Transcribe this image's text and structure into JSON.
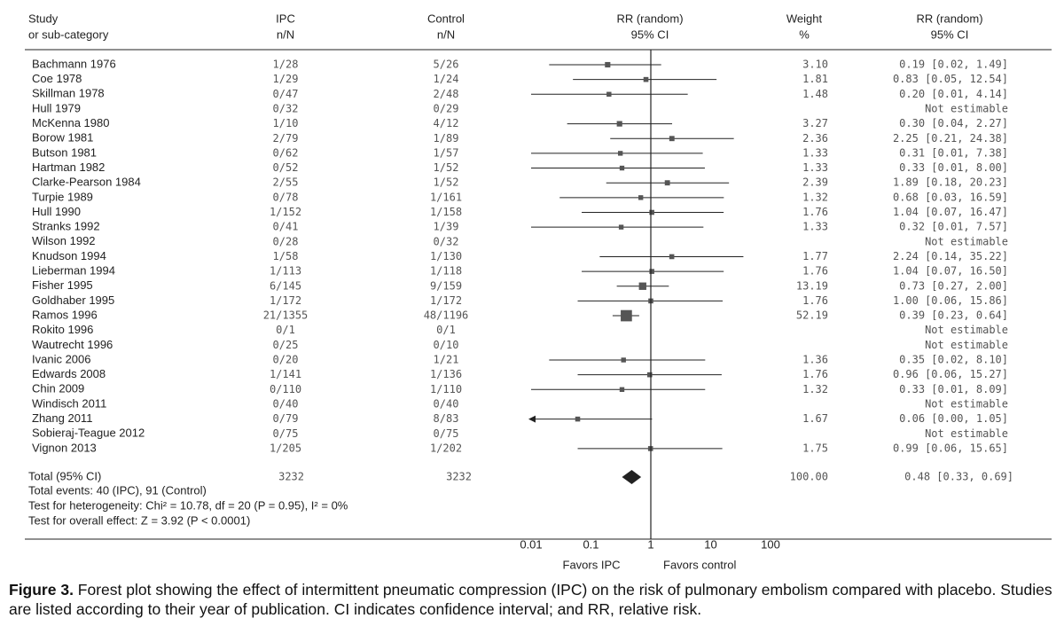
{
  "headers": {
    "study": [
      "Study",
      "or sub-category"
    ],
    "ipc": [
      "IPC",
      "n/N"
    ],
    "control": [
      "Control",
      "n/N"
    ],
    "rr": [
      "RR (random)",
      "95% CI"
    ],
    "weight": [
      "Weight",
      "%"
    ],
    "rr_ci": [
      "RR (random)",
      "95% CI"
    ]
  },
  "chart_data": {
    "type": "forest",
    "x_scale": "log",
    "xlim": [
      0.01,
      100
    ],
    "x_ticks": [
      0.01,
      0.1,
      1,
      10,
      100
    ],
    "x_tick_labels": [
      "0.01",
      "0.1",
      "1",
      "10",
      "100"
    ],
    "null_line": 1,
    "rows": [
      {
        "study": "Bachmann 1976",
        "ipc": "1/28",
        "control": "5/26",
        "rr": 0.19,
        "lo": 0.02,
        "hi": 1.49,
        "weight": "3.10",
        "ci_text": "0.19 [0.02, 1.49]"
      },
      {
        "study": "Coe 1978",
        "ipc": "1/29",
        "control": "1/24",
        "rr": 0.83,
        "lo": 0.05,
        "hi": 12.54,
        "weight": "1.81",
        "ci_text": "0.83 [0.05, 12.54]"
      },
      {
        "study": "Skillman 1978",
        "ipc": "0/47",
        "control": "2/48",
        "rr": 0.2,
        "lo": 0.01,
        "hi": 4.14,
        "weight": "1.48",
        "ci_text": "0.20 [0.01, 4.14]"
      },
      {
        "study": "Hull 1979",
        "ipc": "0/32",
        "control": "0/29",
        "rr": null,
        "lo": null,
        "hi": null,
        "weight": "",
        "ci_text": "Not estimable"
      },
      {
        "study": "McKenna 1980",
        "ipc": "1/10",
        "control": "4/12",
        "rr": 0.3,
        "lo": 0.04,
        "hi": 2.27,
        "weight": "3.27",
        "ci_text": "0.30 [0.04, 2.27]"
      },
      {
        "study": "Borow 1981",
        "ipc": "2/79",
        "control": "1/89",
        "rr": 2.25,
        "lo": 0.21,
        "hi": 24.38,
        "weight": "2.36",
        "ci_text": "2.25 [0.21, 24.38]"
      },
      {
        "study": "Butson 1981",
        "ipc": "0/62",
        "control": "1/57",
        "rr": 0.31,
        "lo": 0.01,
        "hi": 7.38,
        "weight": "1.33",
        "ci_text": "0.31 [0.01, 7.38]"
      },
      {
        "study": "Hartman 1982",
        "ipc": "0/52",
        "control": "1/52",
        "rr": 0.33,
        "lo": 0.01,
        "hi": 8.0,
        "weight": "1.33",
        "ci_text": "0.33 [0.01, 8.00]"
      },
      {
        "study": "Clarke-Pearson 1984",
        "ipc": "2/55",
        "control": "1/52",
        "rr": 1.89,
        "lo": 0.18,
        "hi": 20.23,
        "weight": "2.39",
        "ci_text": "1.89 [0.18, 20.23]"
      },
      {
        "study": "Turpie 1989",
        "ipc": "0/78",
        "control": "1/161",
        "rr": 0.68,
        "lo": 0.03,
        "hi": 16.59,
        "weight": "1.32",
        "ci_text": "0.68 [0.03, 16.59]"
      },
      {
        "study": "Hull 1990",
        "ipc": "1/152",
        "control": "1/158",
        "rr": 1.04,
        "lo": 0.07,
        "hi": 16.47,
        "weight": "1.76",
        "ci_text": "1.04 [0.07, 16.47]"
      },
      {
        "study": "Stranks 1992",
        "ipc": "0/41",
        "control": "1/39",
        "rr": 0.32,
        "lo": 0.01,
        "hi": 7.57,
        "weight": "1.33",
        "ci_text": "0.32 [0.01, 7.57]"
      },
      {
        "study": "Wilson 1992",
        "ipc": "0/28",
        "control": "0/32",
        "rr": null,
        "lo": null,
        "hi": null,
        "weight": "",
        "ci_text": "Not estimable"
      },
      {
        "study": "Knudson 1994",
        "ipc": "1/58",
        "control": "1/130",
        "rr": 2.24,
        "lo": 0.14,
        "hi": 35.22,
        "weight": "1.77",
        "ci_text": "2.24 [0.14, 35.22]"
      },
      {
        "study": "Lieberman 1994",
        "ipc": "1/113",
        "control": "1/118",
        "rr": 1.04,
        "lo": 0.07,
        "hi": 16.5,
        "weight": "1.76",
        "ci_text": "1.04 [0.07, 16.50]"
      },
      {
        "study": "Fisher 1995",
        "ipc": "6/145",
        "control": "9/159",
        "rr": 0.73,
        "lo": 0.27,
        "hi": 2.0,
        "weight": "13.19",
        "ci_text": "0.73 [0.27, 2.00]"
      },
      {
        "study": "Goldhaber 1995",
        "ipc": "1/172",
        "control": "1/172",
        "rr": 1.0,
        "lo": 0.06,
        "hi": 15.86,
        "weight": "1.76",
        "ci_text": "1.00 [0.06, 15.86]"
      },
      {
        "study": "Ramos 1996",
        "ipc": "21/1355",
        "control": "48/1196",
        "rr": 0.39,
        "lo": 0.23,
        "hi": 0.64,
        "weight": "52.19",
        "ci_text": "0.39 [0.23, 0.64]"
      },
      {
        "study": "Rokito 1996",
        "ipc": "0/1",
        "control": "0/1",
        "rr": null,
        "lo": null,
        "hi": null,
        "weight": "",
        "ci_text": "Not estimable"
      },
      {
        "study": "Wautrecht 1996",
        "ipc": "0/25",
        "control": "0/10",
        "rr": null,
        "lo": null,
        "hi": null,
        "weight": "",
        "ci_text": "Not estimable"
      },
      {
        "study": "Ivanic 2006",
        "ipc": "0/20",
        "control": "1/21",
        "rr": 0.35,
        "lo": 0.02,
        "hi": 8.1,
        "weight": "1.36",
        "ci_text": "0.35 [0.02, 8.10]"
      },
      {
        "study": "Edwards 2008",
        "ipc": "1/141",
        "control": "1/136",
        "rr": 0.96,
        "lo": 0.06,
        "hi": 15.27,
        "weight": "1.76",
        "ci_text": "0.96 [0.06, 15.27]"
      },
      {
        "study": "Chin 2009",
        "ipc": "0/110",
        "control": "1/110",
        "rr": 0.33,
        "lo": 0.01,
        "hi": 8.09,
        "weight": "1.32",
        "ci_text": "0.33 [0.01, 8.09]"
      },
      {
        "study": "Windisch 2011",
        "ipc": "0/40",
        "control": "0/40",
        "rr": null,
        "lo": null,
        "hi": null,
        "weight": "",
        "ci_text": "Not estimable"
      },
      {
        "study": "Zhang 2011",
        "ipc": "0/79",
        "control": "8/83",
        "rr": 0.06,
        "lo": 0.0,
        "hi": 1.05,
        "weight": "1.67",
        "ci_text": "0.06 [0.00, 1.05]"
      },
      {
        "study": "Sobieraj-Teague 2012",
        "ipc": "0/75",
        "control": "0/75",
        "rr": null,
        "lo": null,
        "hi": null,
        "weight": "",
        "ci_text": "Not estimable"
      },
      {
        "study": "Vignon 2013",
        "ipc": "1/205",
        "control": "1/202",
        "rr": 0.99,
        "lo": 0.06,
        "hi": 15.65,
        "weight": "1.75",
        "ci_text": "0.99 [0.06, 15.65]"
      }
    ],
    "total": {
      "label": "Total (95% CI)",
      "ipc": "3232",
      "control": "3232",
      "rr": 0.48,
      "lo": 0.33,
      "hi": 0.69,
      "weight": "100.00",
      "ci_text": "0.48 [0.33, 0.69]"
    },
    "notes": [
      "Total events: 40 (IPC), 91 (Control)",
      "Test for heterogeneity: Chi² = 10.78, df = 20 (P = 0.95), I² = 0%",
      "Test for overall effect: Z = 3.92 (P < 0.0001)"
    ],
    "favors_left": "Favors IPC",
    "favors_right": "Favors control",
    "colors": {
      "ink": "#222222",
      "marker": "#555555",
      "mono_text": "#555555"
    }
  },
  "caption": {
    "label": "Figure 3.",
    "text": " Forest plot showing the effect of intermittent pneumatic compression (IPC) on the risk of pulmonary embolism compared with placebo. Studies are listed according to their year of publication. CI indicates confidence interval; and RR, relative risk."
  }
}
